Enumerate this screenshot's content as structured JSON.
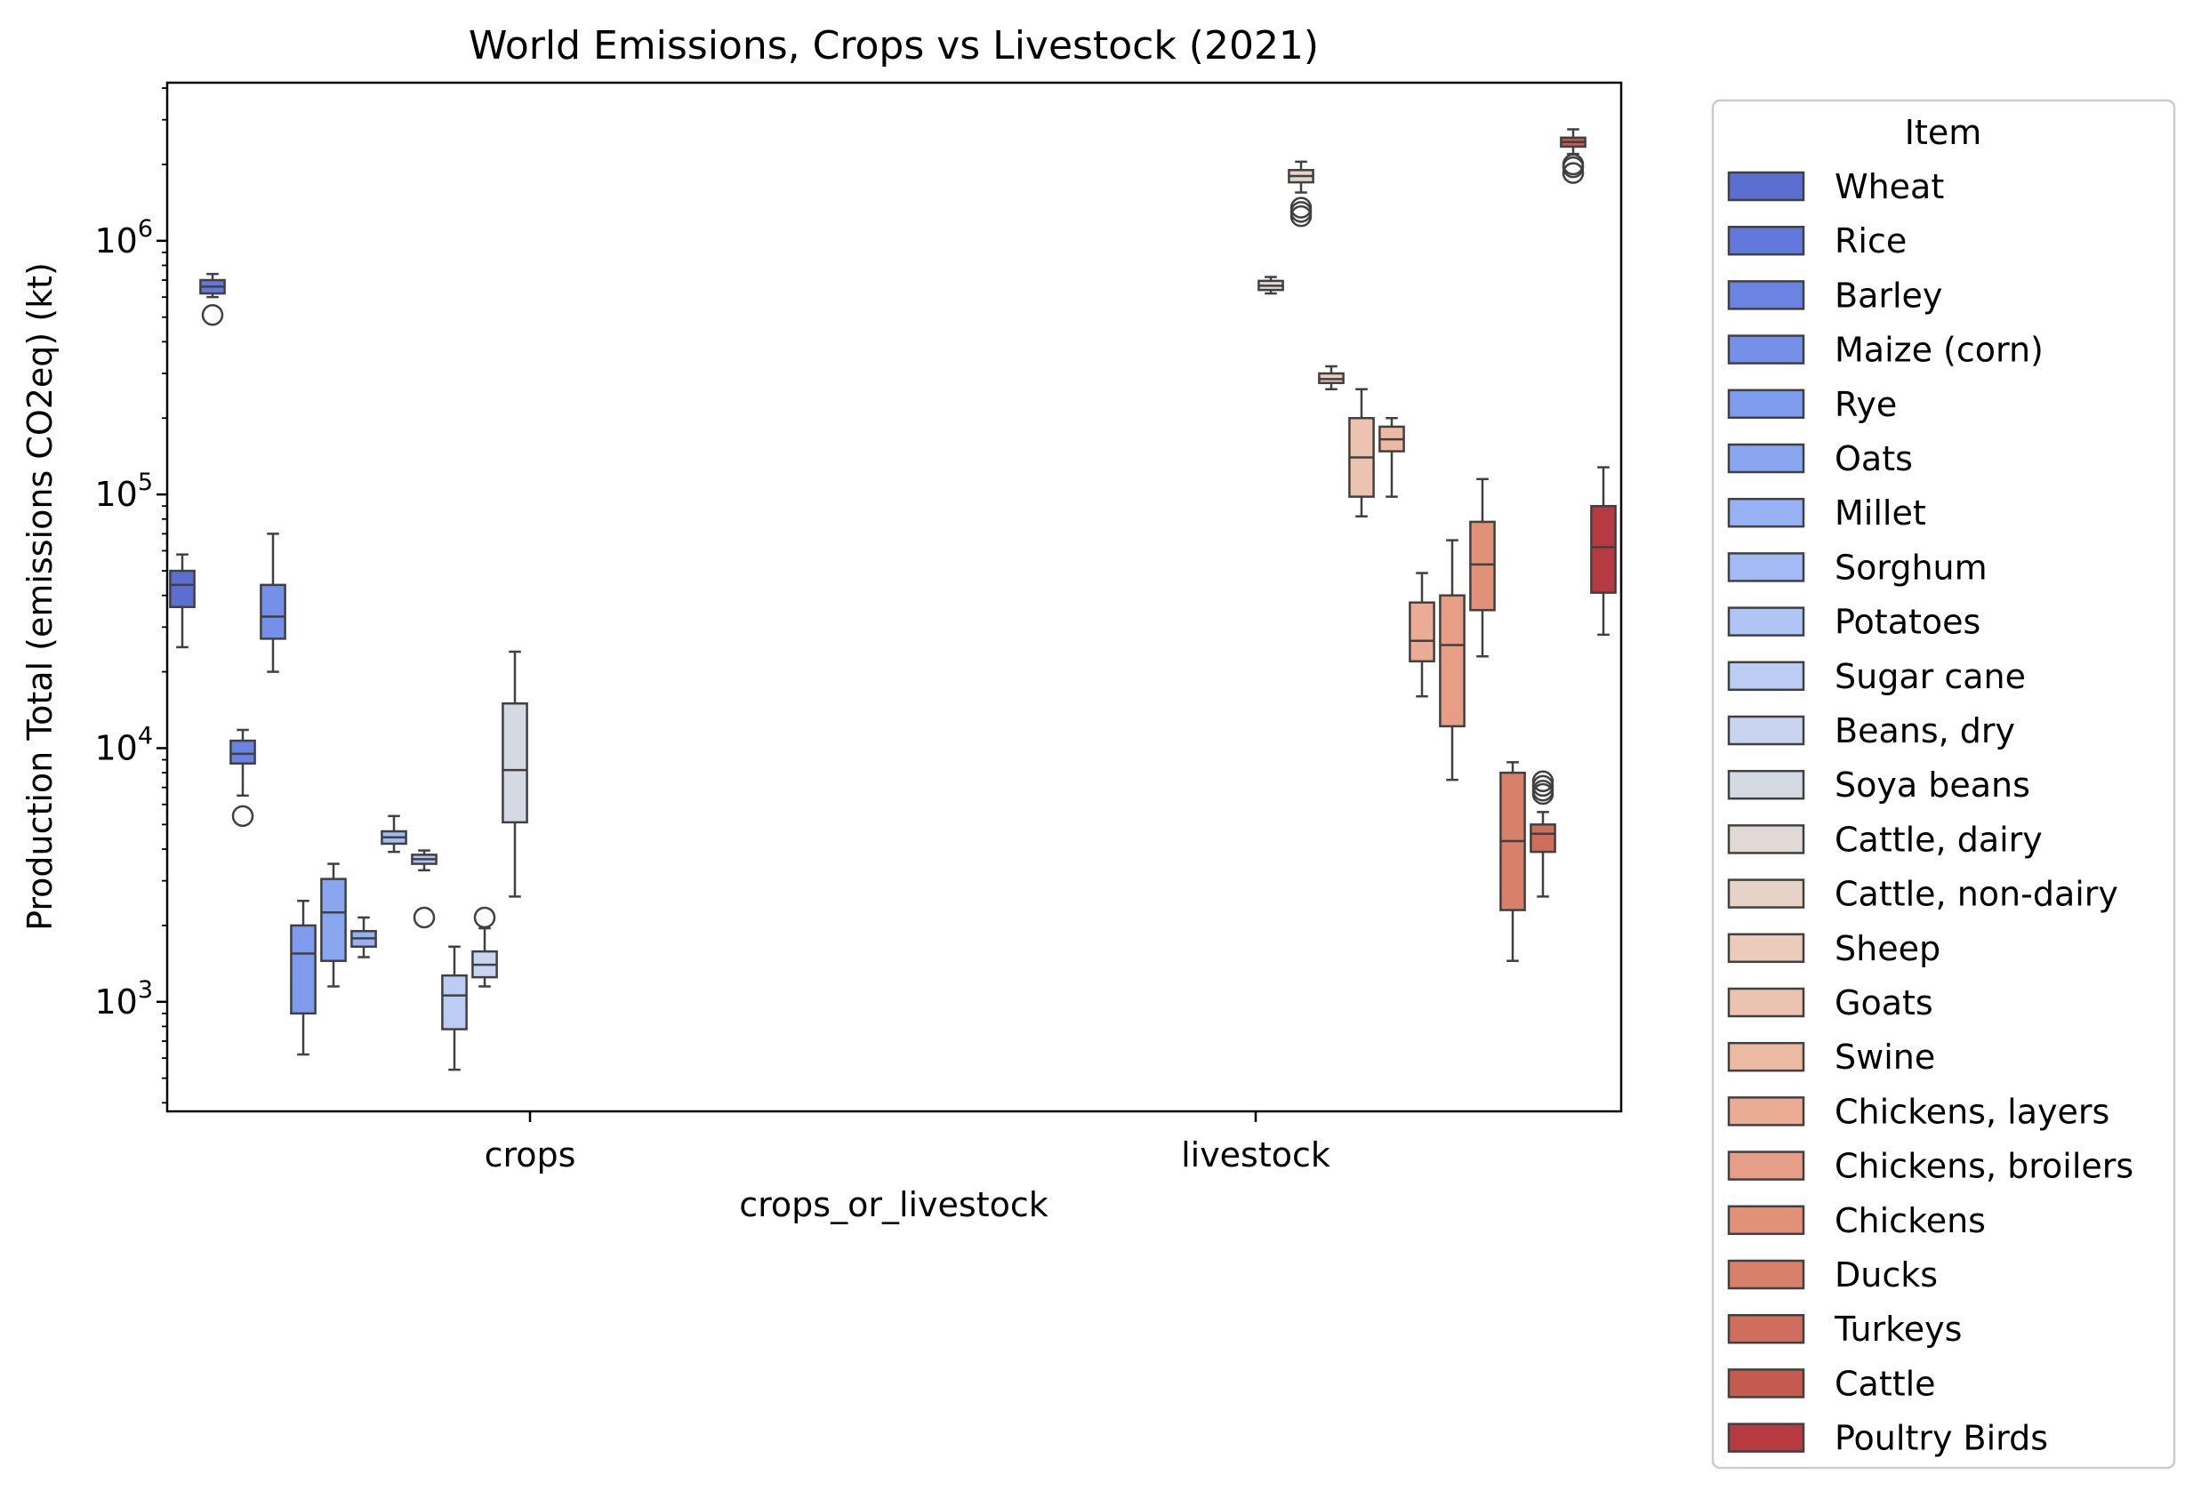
{
  "chart_data": {
    "type": "box",
    "title": "World Emissions, Crops vs Livestock (2021)",
    "xlabel": "crops_or_livestock",
    "ylabel": "Production Total (emissions CO2eq) (kt)",
    "yscale": "log",
    "ylim": [
      370,
      4200000
    ],
    "categories": [
      "crops",
      "livestock"
    ],
    "y_ticks": [
      {
        "value": 1000,
        "base": "10",
        "exp": "3"
      },
      {
        "value": 10000,
        "base": "10",
        "exp": "4"
      },
      {
        "value": 100000,
        "base": "10",
        "exp": "5"
      },
      {
        "value": 1000000,
        "base": "10",
        "exp": "6"
      }
    ],
    "grid": false,
    "legend": {
      "title": "Item",
      "position": "outside-right"
    },
    "series": [
      {
        "name": "Wheat",
        "color": "#5a6fd0",
        "boxes": [
          {
            "category": "crops",
            "whislo": 25000,
            "q1": 36000,
            "med": 44000,
            "q3": 50000,
            "whishi": 58000,
            "fliers": []
          }
        ]
      },
      {
        "name": "Rice",
        "color": "#6279db",
        "boxes": [
          {
            "category": "crops",
            "whislo": 600000,
            "q1": 620000,
            "med": 660000,
            "q3": 700000,
            "whishi": 740000,
            "fliers": [
              510000
            ]
          }
        ]
      },
      {
        "name": "Barley",
        "color": "#6b84e2",
        "boxes": [
          {
            "category": "crops",
            "whislo": 6500,
            "q1": 8700,
            "med": 9500,
            "q3": 10700,
            "whishi": 11800,
            "fliers": [
              5400
            ]
          }
        ]
      },
      {
        "name": "Maize (corn)",
        "color": "#7490e8",
        "boxes": [
          {
            "category": "crops",
            "whislo": 20000,
            "q1": 27000,
            "med": 33000,
            "q3": 44000,
            "whishi": 70000,
            "fliers": []
          }
        ]
      },
      {
        "name": "Rye",
        "color": "#7e9bee",
        "boxes": [
          {
            "category": "crops",
            "whislo": 620,
            "q1": 900,
            "med": 1550,
            "q3": 2000,
            "whishi": 2500,
            "fliers": []
          }
        ]
      },
      {
        "name": "Oats",
        "color": "#8aa6f1",
        "boxes": [
          {
            "category": "crops",
            "whislo": 1150,
            "q1": 1450,
            "med": 2250,
            "q3": 3050,
            "whishi": 3500,
            "fliers": []
          }
        ]
      },
      {
        "name": "Millet",
        "color": "#96b1f4",
        "boxes": [
          {
            "category": "crops",
            "whislo": 1500,
            "q1": 1650,
            "med": 1780,
            "q3": 1900,
            "whishi": 2150,
            "fliers": []
          }
        ]
      },
      {
        "name": "Sorghum",
        "color": "#a3bbf5",
        "boxes": [
          {
            "category": "crops",
            "whislo": 3900,
            "q1": 4200,
            "med": 4450,
            "q3": 4700,
            "whishi": 5400,
            "fliers": []
          }
        ]
      },
      {
        "name": "Potatoes",
        "color": "#b0c4f6",
        "boxes": [
          {
            "category": "crops",
            "whislo": 3300,
            "q1": 3500,
            "med": 3650,
            "q3": 3800,
            "whishi": 3950,
            "fliers": [
              2150
            ]
          }
        ]
      },
      {
        "name": "Sugar cane",
        "color": "#bccdf4",
        "boxes": [
          {
            "category": "crops",
            "whislo": 540,
            "q1": 780,
            "med": 1060,
            "q3": 1270,
            "whishi": 1650,
            "fliers": []
          }
        ]
      },
      {
        "name": "Beans, dry",
        "color": "#c8d4f0",
        "boxes": [
          {
            "category": "crops",
            "whislo": 1150,
            "q1": 1250,
            "med": 1400,
            "q3": 1580,
            "whishi": 1950,
            "fliers": [
              2150
            ]
          }
        ]
      },
      {
        "name": "Soya beans",
        "color": "#d4d9e4",
        "boxes": [
          {
            "category": "crops",
            "whislo": 2600,
            "q1": 5100,
            "med": 8200,
            "q3": 15000,
            "whishi": 24000,
            "fliers": []
          }
        ]
      },
      {
        "name": "Cattle, dairy",
        "color": "#e1d9d5",
        "boxes": [
          {
            "category": "livestock",
            "whislo": 620000,
            "q1": 640000,
            "med": 665000,
            "q3": 695000,
            "whishi": 720000,
            "fliers": []
          }
        ]
      },
      {
        "name": "Cattle, non-dairy",
        "color": "#e6d2c7",
        "boxes": [
          {
            "category": "livestock",
            "whislo": 1550000,
            "q1": 1700000,
            "med": 1800000,
            "q3": 1900000,
            "whishi": 2050000,
            "fliers": [
              1350000,
              1300000,
              1250000
            ]
          }
        ]
      },
      {
        "name": "Sheep",
        "color": "#eacbbc",
        "boxes": [
          {
            "category": "livestock",
            "whislo": 260000,
            "q1": 275000,
            "med": 285000,
            "q3": 300000,
            "whishi": 320000,
            "fliers": []
          }
        ]
      },
      {
        "name": "Goats",
        "color": "#ecc3b0",
        "boxes": [
          {
            "category": "livestock",
            "whislo": 82000,
            "q1": 98000,
            "med": 140000,
            "q3": 200000,
            "whishi": 260000,
            "fliers": []
          }
        ]
      },
      {
        "name": "Swine",
        "color": "#ecb9a3",
        "boxes": [
          {
            "category": "livestock",
            "whislo": 98000,
            "q1": 148000,
            "med": 165000,
            "q3": 185000,
            "whishi": 200000,
            "fliers": []
          }
        ]
      },
      {
        "name": "Chickens, layers",
        "color": "#eaac94",
        "boxes": [
          {
            "category": "livestock",
            "whislo": 16000,
            "q1": 22000,
            "med": 26500,
            "q3": 37500,
            "whishi": 49000,
            "fliers": []
          }
        ]
      },
      {
        "name": "Chickens, broilers",
        "color": "#e69f86",
        "boxes": [
          {
            "category": "livestock",
            "whislo": 7500,
            "q1": 12200,
            "med": 25500,
            "q3": 40000,
            "whishi": 66000,
            "fliers": []
          }
        ]
      },
      {
        "name": "Chickens",
        "color": "#e09178",
        "boxes": [
          {
            "category": "livestock",
            "whislo": 23000,
            "q1": 35000,
            "med": 53000,
            "q3": 78000,
            "whishi": 115000,
            "fliers": []
          }
        ]
      },
      {
        "name": "Ducks",
        "color": "#d8806a",
        "boxes": [
          {
            "category": "livestock",
            "whislo": 1450,
            "q1": 2300,
            "med": 4300,
            "q3": 8000,
            "whishi": 8800,
            "fliers": []
          }
        ]
      },
      {
        "name": "Turkeys",
        "color": "#cf6e5c",
        "boxes": [
          {
            "category": "livestock",
            "whislo": 2600,
            "q1": 3900,
            "med": 4600,
            "q3": 5000,
            "whishi": 5600,
            "fliers": [
              7400,
              7100,
              6800,
              6600
            ]
          }
        ]
      },
      {
        "name": "Cattle",
        "color": "#c55a50",
        "boxes": [
          {
            "category": "livestock",
            "whislo": 2200000,
            "q1": 2350000,
            "med": 2450000,
            "q3": 2550000,
            "whishi": 2750000,
            "fliers": [
              2000000,
              1950000,
              1850000
            ]
          }
        ]
      },
      {
        "name": "Poultry Birds",
        "color": "#b53a42",
        "boxes": [
          {
            "category": "livestock",
            "whislo": 28000,
            "q1": 41000,
            "med": 62000,
            "q3": 90000,
            "whishi": 128000,
            "fliers": []
          }
        ]
      }
    ]
  }
}
